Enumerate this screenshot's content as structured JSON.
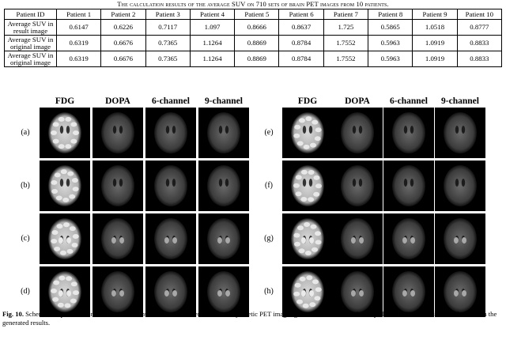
{
  "table_caption": "The calculation results of the average SUV on 710 sets of brain PET images from 10 patients.",
  "table": {
    "columns": [
      "Patient ID",
      "Patient 1",
      "Patient 2",
      "Patient 3",
      "Patient 4",
      "Patient 5",
      "Patient 6",
      "Patient 7",
      "Patient 8",
      "Patient 9",
      "Patient 10"
    ],
    "rows": [
      {
        "label": "Average SUV in result image",
        "values": [
          "0.6147",
          "0.6226",
          "0.7117",
          "1.097",
          "0.8666",
          "0.8637",
          "1.725",
          "0.5865",
          "1.0518",
          "0.8777"
        ]
      },
      {
        "label": "Average SUV in original image",
        "values": [
          "0.6319",
          "0.6676",
          "0.7365",
          "1.1264",
          "0.8869",
          "0.8784",
          "1.7552",
          "0.5963",
          "1.0919",
          "0.8833"
        ]
      },
      {
        "label": "Average SUV in original image",
        "values": [
          "0.6319",
          "0.6676",
          "0.7365",
          "1.1264",
          "0.8869",
          "0.8784",
          "1.7552",
          "0.5963",
          "1.0919",
          "0.8833"
        ]
      }
    ]
  },
  "figure": {
    "column_headers": [
      "FDG",
      "DOPA",
      "6-channel",
      "9-channel"
    ],
    "left_rows": [
      "(a)",
      "(b)",
      "(c)",
      "(d)"
    ],
    "right_rows": [
      "(e)",
      "(f)",
      "(g)",
      "(h)"
    ]
  },
  "figure_caption": {
    "label": "Fig. 10.",
    "text": " Schematic representation of PET data reconstructed with reference data and synthetic PET images generated, and the results of qualitative effects of different channels on the generated results."
  }
}
